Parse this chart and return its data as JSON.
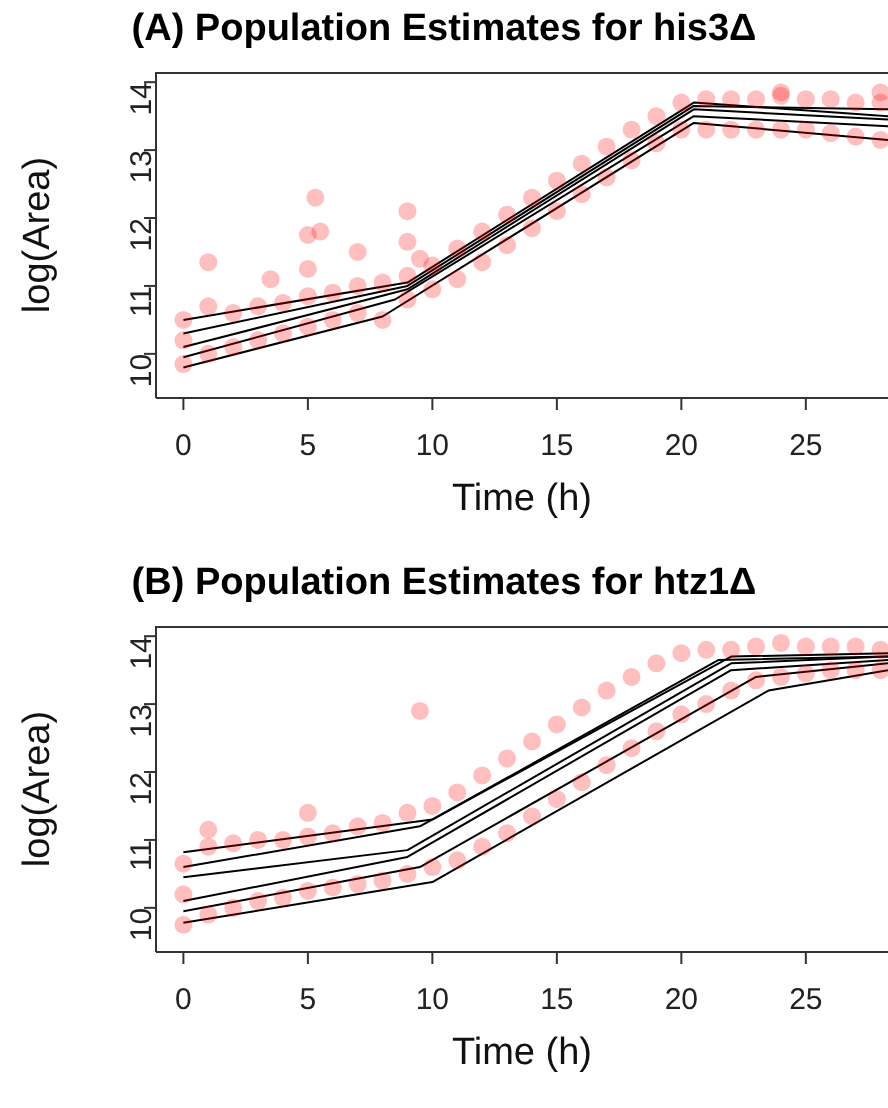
{
  "chart_data": [
    {
      "type": "scatter",
      "title": "(A) Population Estimates for his3Δ",
      "xlabel": "Time (h)",
      "ylabel": "log(Area)",
      "xlim": [
        -1.1,
        28.3
      ],
      "ylim": [
        9.35,
        14.15
      ],
      "xticks": [
        0,
        5,
        10,
        15,
        20,
        25
      ],
      "yticks": [
        10,
        11,
        12,
        13,
        14
      ],
      "grid": false,
      "series": [
        {
          "marker": "circle",
          "color": "#ff0000",
          "x": [
            0,
            0,
            0,
            1,
            1,
            2,
            2,
            3,
            3,
            4,
            4,
            5,
            5,
            6,
            6,
            7,
            7,
            8,
            8,
            9,
            9,
            10,
            10,
            11,
            11,
            12,
            12,
            13,
            13,
            14,
            14,
            15,
            15,
            16,
            16,
            17,
            17,
            18,
            18,
            19,
            19,
            20,
            20,
            21,
            21,
            22,
            22,
            23,
            23,
            24,
            24,
            25,
            25,
            26,
            26,
            27,
            27,
            28,
            28,
            1,
            3.5,
            5,
            5.3,
            5,
            5.5,
            7,
            9,
            9,
            9.5,
            24,
            28
          ],
          "values": [
            9.85,
            10.2,
            10.5,
            10.0,
            10.7,
            10.1,
            10.6,
            10.2,
            10.7,
            10.3,
            10.75,
            10.4,
            10.85,
            10.5,
            10.9,
            10.6,
            11.0,
            10.5,
            11.05,
            10.8,
            11.15,
            10.95,
            11.3,
            11.1,
            11.55,
            11.35,
            11.8,
            11.6,
            12.05,
            11.85,
            12.3,
            12.1,
            12.55,
            12.35,
            12.8,
            12.6,
            13.05,
            12.85,
            13.3,
            13.1,
            13.5,
            13.3,
            13.7,
            13.3,
            13.75,
            13.3,
            13.75,
            13.3,
            13.75,
            13.3,
            13.8,
            13.3,
            13.75,
            13.25,
            13.75,
            13.2,
            13.7,
            13.15,
            13.7,
            11.35,
            11.1,
            11.75,
            12.3,
            11.25,
            11.8,
            11.5,
            12.1,
            11.65,
            11.4,
            13.85,
            13.85
          ]
        },
        {
          "type": "line",
          "marker": "none",
          "color": "#000000",
          "x": [
            0,
            9,
            20.5,
            28.3
          ],
          "values": [
            10.5,
            11.05,
            13.7,
            13.5
          ]
        },
        {
          "type": "line",
          "marker": "none",
          "color": "#000000",
          "x": [
            0,
            9,
            20.5,
            28.3
          ],
          "values": [
            10.3,
            11.0,
            13.65,
            13.6
          ]
        },
        {
          "type": "line",
          "marker": "none",
          "color": "#000000",
          "x": [
            0,
            9,
            20.5,
            28.3
          ],
          "values": [
            10.1,
            10.95,
            13.6,
            13.45
          ]
        },
        {
          "type": "line",
          "marker": "none",
          "color": "#000000",
          "x": [
            0,
            8.5,
            20.5,
            28.3
          ],
          "values": [
            9.95,
            10.8,
            13.5,
            13.35
          ]
        },
        {
          "type": "line",
          "marker": "none",
          "color": "#000000",
          "x": [
            0,
            8,
            20.5,
            28.3
          ],
          "values": [
            9.8,
            10.55,
            13.4,
            13.15
          ]
        }
      ]
    },
    {
      "type": "scatter",
      "title": "(B) Population Estimates for htz1Δ",
      "xlabel": "Time (h)",
      "ylabel": "log(Area)",
      "xlim": [
        -1.1,
        28.3
      ],
      "ylim": [
        9.35,
        14.15
      ],
      "xticks": [
        0,
        5,
        10,
        15,
        20,
        25
      ],
      "yticks": [
        10,
        11,
        12,
        13,
        14
      ],
      "grid": false,
      "series": [
        {
          "marker": "circle",
          "color": "#ff0000",
          "x": [
            0,
            0,
            0,
            1,
            1,
            2,
            2,
            3,
            3,
            4,
            4,
            5,
            5,
            6,
            6,
            7,
            7,
            8,
            8,
            9,
            9,
            10,
            10,
            11,
            11,
            12,
            12,
            13,
            13,
            14,
            14,
            15,
            15,
            16,
            16,
            17,
            17,
            18,
            18,
            19,
            19,
            20,
            20,
            21,
            21,
            22,
            22,
            23,
            23,
            24,
            24,
            25,
            25,
            26,
            26,
            27,
            27,
            28,
            28,
            9.5,
            5,
            1
          ],
          "values": [
            9.75,
            10.2,
            10.65,
            9.9,
            10.9,
            10.0,
            10.95,
            10.1,
            11.0,
            10.15,
            11.0,
            10.25,
            11.05,
            10.3,
            11.1,
            10.35,
            11.2,
            10.4,
            11.25,
            10.5,
            11.4,
            10.6,
            11.5,
            10.7,
            11.7,
            10.9,
            11.95,
            11.1,
            12.2,
            11.35,
            12.45,
            11.6,
            12.7,
            11.85,
            12.95,
            12.1,
            13.2,
            12.35,
            13.4,
            12.6,
            13.6,
            12.85,
            13.75,
            13.0,
            13.8,
            13.2,
            13.8,
            13.35,
            13.85,
            13.4,
            13.9,
            13.45,
            13.85,
            13.5,
            13.85,
            13.5,
            13.85,
            13.5,
            13.8,
            12.9,
            11.4,
            11.15
          ]
        },
        {
          "type": "line",
          "marker": "none",
          "color": "#000000",
          "x": [
            0,
            10,
            22,
            28.3
          ],
          "values": [
            10.82,
            11.3,
            13.7,
            13.75
          ]
        },
        {
          "type": "line",
          "marker": "none",
          "color": "#000000",
          "x": [
            0,
            9.5,
            21.5,
            28.3
          ],
          "values": [
            10.6,
            11.2,
            13.65,
            13.7
          ]
        },
        {
          "type": "line",
          "marker": "none",
          "color": "#000000",
          "x": [
            0,
            9,
            22,
            28.3
          ],
          "values": [
            10.45,
            10.85,
            13.6,
            13.7
          ]
        },
        {
          "type": "line",
          "marker": "none",
          "color": "#000000",
          "x": [
            0,
            9,
            22,
            28.3
          ],
          "values": [
            10.1,
            10.75,
            13.5,
            13.65
          ]
        },
        {
          "type": "line",
          "marker": "none",
          "color": "#000000",
          "x": [
            0,
            9.5,
            23,
            28.3
          ],
          "values": [
            9.95,
            10.6,
            13.4,
            13.6
          ]
        },
        {
          "type": "line",
          "marker": "none",
          "color": "#000000",
          "x": [
            0,
            10,
            23.5,
            28.3
          ],
          "values": [
            9.78,
            10.38,
            13.2,
            13.5
          ]
        }
      ]
    }
  ]
}
